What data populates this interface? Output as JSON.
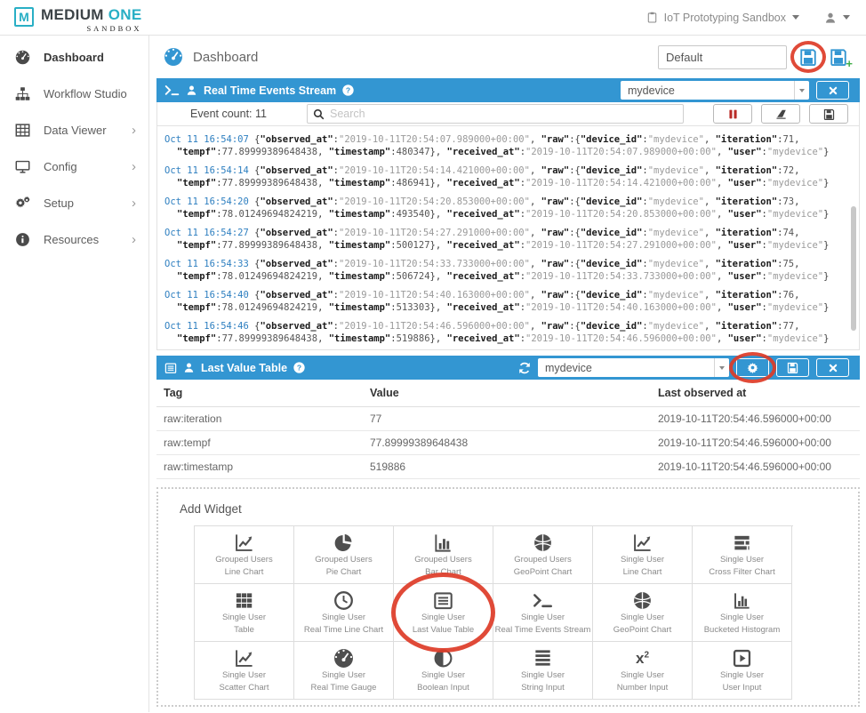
{
  "brand": {
    "logo_letter": "M",
    "name_primary": "MEDIUM",
    "name_secondary": "ONE",
    "subtitle": "SANDBOX"
  },
  "top_bar": {
    "workspace": "IoT Prototyping Sandbox"
  },
  "sidebar": {
    "items": [
      {
        "label": "Dashboard",
        "icon": "gauge",
        "active": true,
        "chevron": false
      },
      {
        "label": "Workflow Studio",
        "icon": "sitemap",
        "active": false,
        "chevron": false
      },
      {
        "label": "Data Viewer",
        "icon": "grid",
        "active": false,
        "chevron": true
      },
      {
        "label": "Config",
        "icon": "monitor",
        "active": false,
        "chevron": true
      },
      {
        "label": "Setup",
        "icon": "gears",
        "active": false,
        "chevron": true
      },
      {
        "label": "Resources",
        "icon": "info",
        "active": false,
        "chevron": true
      }
    ]
  },
  "page": {
    "title": "Dashboard",
    "dashboard_name": "Default"
  },
  "events_widget": {
    "title": "Real Time Events Stream",
    "device": "mydevice",
    "event_count": "Event count: 11",
    "search_placeholder": "Search",
    "entries": [
      {
        "time": "Oct 11 16:54:07",
        "observed_at": "2019-10-11T20:54:07.989000+00:00",
        "device_id": "mydevice",
        "iteration": "71",
        "tempf": "77.89999389648438",
        "timestamp": "480347",
        "received_at": "2019-10-11T20:54:07.989000+00:00",
        "user": "mydevice"
      },
      {
        "time": "Oct 11 16:54:14",
        "observed_at": "2019-10-11T20:54:14.421000+00:00",
        "device_id": "mydevice",
        "iteration": "72",
        "tempf": "77.89999389648438",
        "timestamp": "486941",
        "received_at": "2019-10-11T20:54:14.421000+00:00",
        "user": "mydevice"
      },
      {
        "time": "Oct 11 16:54:20",
        "observed_at": "2019-10-11T20:54:20.853000+00:00",
        "device_id": "mydevice",
        "iteration": "73",
        "tempf": "78.01249694824219",
        "timestamp": "493540",
        "received_at": "2019-10-11T20:54:20.853000+00:00",
        "user": "mydevice"
      },
      {
        "time": "Oct 11 16:54:27",
        "observed_at": "2019-10-11T20:54:27.291000+00:00",
        "device_id": "mydevice",
        "iteration": "74",
        "tempf": "77.89999389648438",
        "timestamp": "500127",
        "received_at": "2019-10-11T20:54:27.291000+00:00",
        "user": "mydevice"
      },
      {
        "time": "Oct 11 16:54:33",
        "observed_at": "2019-10-11T20:54:33.733000+00:00",
        "device_id": "mydevice",
        "iteration": "75",
        "tempf": "78.01249694824219",
        "timestamp": "506724",
        "received_at": "2019-10-11T20:54:33.733000+00:00",
        "user": "mydevice"
      },
      {
        "time": "Oct 11 16:54:40",
        "observed_at": "2019-10-11T20:54:40.163000+00:00",
        "device_id": "mydevice",
        "iteration": "76",
        "tempf": "78.01249694824219",
        "timestamp": "513303",
        "received_at": "2019-10-11T20:54:40.163000+00:00",
        "user": "mydevice"
      },
      {
        "time": "Oct 11 16:54:46",
        "observed_at": "2019-10-11T20:54:46.596000+00:00",
        "device_id": "mydevice",
        "iteration": "77",
        "tempf": "77.89999389648438",
        "timestamp": "519886",
        "received_at": "2019-10-11T20:54:46.596000+00:00",
        "user": "mydevice"
      }
    ]
  },
  "table_widget": {
    "title": "Last Value Table",
    "device": "mydevice",
    "columns": [
      "Tag",
      "Value",
      "Last observed at"
    ],
    "rows": [
      [
        "raw:iteration",
        "77",
        "2019-10-11T20:54:46.596000+00:00"
      ],
      [
        "raw:tempf",
        "77.89999389648438",
        "2019-10-11T20:54:46.596000+00:00"
      ],
      [
        "raw:timestamp",
        "519886",
        "2019-10-11T20:54:46.596000+00:00"
      ]
    ]
  },
  "add_widget": {
    "title": "Add Widget",
    "items": [
      {
        "icon": "line-chart",
        "line1": "Grouped Users",
        "line2": "Line Chart"
      },
      {
        "icon": "pie-chart",
        "line1": "Grouped Users",
        "line2": "Pie Chart"
      },
      {
        "icon": "bar-chart",
        "line1": "Grouped Users",
        "line2": "Bar Chart"
      },
      {
        "icon": "globe",
        "line1": "Grouped Users",
        "line2": "GeoPoint Chart"
      },
      {
        "icon": "line-chart",
        "line1": "Single User",
        "line2": "Line Chart"
      },
      {
        "icon": "cross-filter",
        "line1": "Single User",
        "line2": "Cross Filter Chart"
      },
      {
        "icon": "table-cells",
        "line1": "Single User",
        "line2": "Table"
      },
      {
        "icon": "clock",
        "line1": "Single User",
        "line2": "Real Time Line Chart"
      },
      {
        "icon": "listbox",
        "line1": "Single User",
        "line2": "Last Value Table",
        "annotated": true
      },
      {
        "icon": "terminal",
        "line1": "Single User",
        "line2": "Real Time Events Stream"
      },
      {
        "icon": "globe",
        "line1": "Single User",
        "line2": "GeoPoint Chart"
      },
      {
        "icon": "histogram",
        "line1": "Single User",
        "line2": "Bucketed Histogram"
      },
      {
        "icon": "scatter",
        "line1": "Single User",
        "line2": "Scatter Chart"
      },
      {
        "icon": "gauge",
        "line1": "Single User",
        "line2": "Real Time Gauge"
      },
      {
        "icon": "boolean",
        "line1": "Single User",
        "line2": "Boolean Input"
      },
      {
        "icon": "string-lines",
        "line1": "Single User",
        "line2": "String Input"
      },
      {
        "icon": "x2",
        "line1": "Single User",
        "line2": "Number Input"
      },
      {
        "icon": "user-input",
        "line1": "Single User",
        "line2": "User Input"
      }
    ]
  },
  "colors": {
    "blue": "#3396d2",
    "teal": "#29afc5",
    "ring": "#dd3b27",
    "pausered": "#b92b27",
    "green": "#3fae49",
    "logblue": "#2e7fc0"
  }
}
